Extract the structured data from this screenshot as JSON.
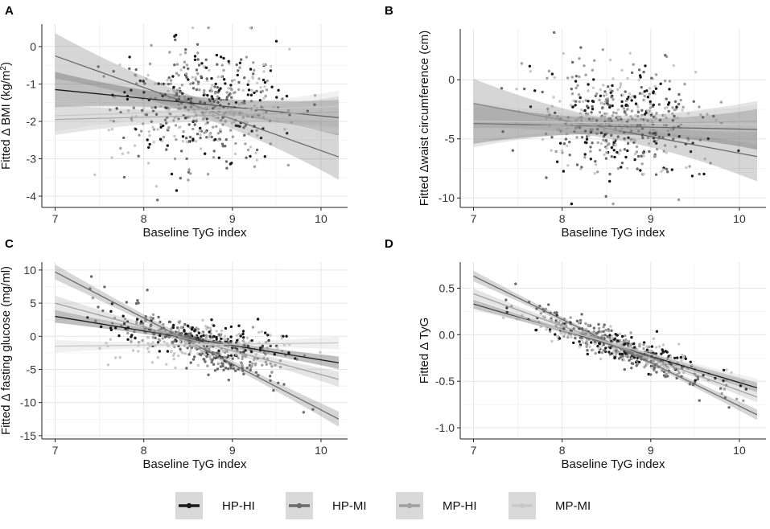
{
  "legend": {
    "entries": [
      {
        "name": "HP-HI",
        "color": "#1a1a1a"
      },
      {
        "name": "HP-MI",
        "color": "#6b6b6b"
      },
      {
        "name": "MP-HI",
        "color": "#a0a0a0"
      },
      {
        "name": "MP-MI",
        "color": "#c8c8c8"
      }
    ]
  },
  "chart_data": [
    {
      "id": "A",
      "panel_label": "A",
      "type": "scatter",
      "xlabel": "Baseline TyG index",
      "ylabel_prefix": "Fitted Δ BMI (kg/m",
      "ylabel_sup": "2",
      "ylabel_suffix": ")",
      "xlim": [
        6.85,
        10.3
      ],
      "ylim": [
        -4.3,
        0.6
      ],
      "xticks": [
        7,
        8,
        9,
        10
      ],
      "yticks": [
        0,
        -1,
        -2,
        -3,
        -4
      ],
      "grid": true,
      "point_center": -1.6,
      "point_spread": 1.0,
      "n_points": 520,
      "series": [
        {
          "name": "HP-HI",
          "x": [
            7.0,
            10.2
          ],
          "y": [
            -1.15,
            -1.9
          ],
          "ci": 0.25
        },
        {
          "name": "HP-MI",
          "x": [
            7.0,
            10.2
          ],
          "y": [
            -0.25,
            -2.95
          ],
          "ci": 0.32
        },
        {
          "name": "MP-HI",
          "x": [
            7.0,
            10.2
          ],
          "y": [
            -1.95,
            -1.75
          ],
          "ci": 0.22
        },
        {
          "name": "MP-MI",
          "x": [
            7.0,
            10.2
          ],
          "y": [
            -1.85,
            -1.6
          ],
          "ci": 0.22
        }
      ]
    },
    {
      "id": "B",
      "panel_label": "B",
      "type": "scatter",
      "xlabel": "Baseline TyG index",
      "ylabel_prefix": "Fitted Δwaist circumference (cm)",
      "ylabel_sup": "",
      "ylabel_suffix": "",
      "xlim": [
        6.85,
        10.3
      ],
      "ylim": [
        -10.8,
        4.3
      ],
      "xticks": [
        7,
        8,
        9,
        10
      ],
      "yticks": [
        0,
        -5,
        -10
      ],
      "grid": true,
      "point_center": -3.5,
      "point_spread": 3.0,
      "n_points": 520,
      "series": [
        {
          "name": "HP-HI",
          "x": [
            7.0,
            10.2
          ],
          "y": [
            -3.7,
            -4.2
          ],
          "ci": 0.9
        },
        {
          "name": "HP-MI",
          "x": [
            7.0,
            10.2
          ],
          "y": [
            -2.0,
            -6.5
          ],
          "ci": 1.1
        },
        {
          "name": "MP-HI",
          "x": [
            7.0,
            10.2
          ],
          "y": [
            -4.0,
            -3.5
          ],
          "ci": 0.9
        },
        {
          "name": "MP-MI",
          "x": [
            7.0,
            10.2
          ],
          "y": [
            -3.5,
            -3.8
          ],
          "ci": 0.9
        }
      ]
    },
    {
      "id": "C",
      "panel_label": "C",
      "type": "scatter",
      "xlabel": "Baseline TyG index",
      "ylabel_prefix": "Fitted Δ fasting glucose (mg/ml)",
      "ylabel_sup": "",
      "ylabel_suffix": "",
      "xlim": [
        6.85,
        10.3
      ],
      "ylim": [
        -15.5,
        11.2
      ],
      "xticks": [
        7,
        8,
        9,
        10
      ],
      "yticks": [
        10,
        5,
        0,
        -5,
        -10,
        -15
      ],
      "grid": true,
      "point_center": null,
      "point_spread": 1.8,
      "n_points": 540,
      "series": [
        {
          "name": "HP-HI",
          "x": [
            7.0,
            10.2
          ],
          "y": [
            3.0,
            -4.0
          ],
          "ci": 0.5
        },
        {
          "name": "HP-MI",
          "x": [
            7.0,
            10.2
          ],
          "y": [
            9.7,
            -12.5
          ],
          "ci": 0.6
        },
        {
          "name": "MP-HI",
          "x": [
            7.0,
            10.2
          ],
          "y": [
            5.0,
            -6.5
          ],
          "ci": 0.6
        },
        {
          "name": "MP-MI",
          "x": [
            7.0,
            10.2
          ],
          "y": [
            -1.5,
            -1.0
          ],
          "ci": 0.5
        }
      ]
    },
    {
      "id": "D",
      "panel_label": "D",
      "type": "scatter",
      "xlabel": "Baseline TyG index",
      "ylabel_prefix": "Fitted Δ TyG",
      "ylabel_sup": "",
      "ylabel_suffix": "",
      "xlim": [
        6.85,
        10.3
      ],
      "ylim": [
        -1.12,
        0.78
      ],
      "xticks": [
        7,
        8,
        9,
        10
      ],
      "yticks": [
        0.5,
        0.0,
        -0.5,
        -1.0
      ],
      "ytick_labels": [
        "0.5",
        "0.0",
        "-0.5",
        "-1.0"
      ],
      "grid": true,
      "point_center": null,
      "point_spread": 0.1,
      "n_points": 540,
      "series": [
        {
          "name": "HP-HI",
          "x": [
            7.0,
            10.2
          ],
          "y": [
            0.33,
            -0.57
          ],
          "ci": 0.025
        },
        {
          "name": "HP-MI",
          "x": [
            7.0,
            10.2
          ],
          "y": [
            0.63,
            -0.86
          ],
          "ci": 0.03
        },
        {
          "name": "MP-HI",
          "x": [
            7.0,
            10.2
          ],
          "y": [
            0.44,
            -0.67
          ],
          "ci": 0.03
        },
        {
          "name": "MP-MI",
          "x": [
            7.0,
            10.2
          ],
          "y": [
            0.31,
            -0.52
          ],
          "ci": 0.025
        }
      ]
    }
  ]
}
